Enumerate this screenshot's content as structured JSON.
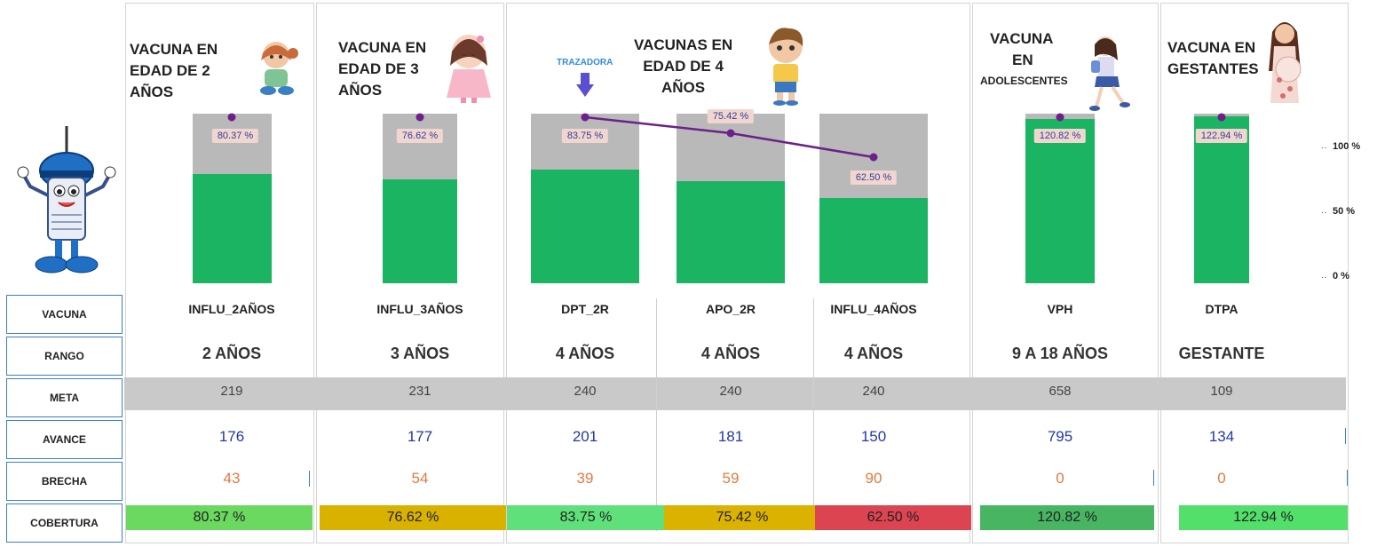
{
  "row_labels": {
    "vacuna": "VACUNA",
    "rango": "RANGO",
    "meta": "META",
    "avance": "AVANCE",
    "brecha": "BRECHA",
    "cobertura": "COBERTURA"
  },
  "panels": [
    {
      "title": "VACUNA EN\nEDAD DE 2\nAÑOS"
    },
    {
      "title": "VACUNA EN\nEDAD DE 3\nAÑOS"
    },
    {
      "title": "VACUNAS EN\nEDAD DE 4\nAÑOS",
      "annotation": "TRAZADORA"
    },
    {
      "title_line1": "VACUNA",
      "title_line2": "EN",
      "title_line3": "ADOLESCENTES"
    },
    {
      "title": "VACUNA EN\nGESTANTES"
    }
  ],
  "vaccines": [
    {
      "name": "INFLU_2AÑOS",
      "rango": "2 AÑOS",
      "meta": "219",
      "avance": "176",
      "brecha": "43",
      "cobertura": "80.37 %",
      "bar_label": "80.37 %",
      "pct": 80.37,
      "cob_color": "#6bd85f"
    },
    {
      "name": "INFLU_3AÑOS",
      "rango": "3 AÑOS",
      "meta": "231",
      "avance": "177",
      "brecha": "54",
      "cobertura": "76.62 %",
      "bar_label": "76.62 %",
      "pct": 76.62,
      "cob_color": "#d9b200"
    },
    {
      "name": "DPT_2R",
      "rango": "4 AÑOS",
      "meta": "240",
      "avance": "201",
      "brecha": "39",
      "cobertura": "83.75 %",
      "bar_label": "83.75 %",
      "pct": 83.75,
      "cob_color": "#5fe07a"
    },
    {
      "name": "APO_2R",
      "rango": "4 AÑOS",
      "meta": "240",
      "avance": "181",
      "brecha": "59",
      "cobertura": "75.42 %",
      "bar_label": "75.42 %",
      "pct": 75.42,
      "cob_color": "#dcb200"
    },
    {
      "name": "INFLU_4AÑOS",
      "rango": "4 AÑOS",
      "meta": "240",
      "avance": "150",
      "brecha": "90",
      "cobertura": "62.50 %",
      "bar_label": "62.50 %",
      "pct": 62.5,
      "cob_color": "#db4450"
    },
    {
      "name": "VPH",
      "rango": "9 A 18 AÑOS",
      "meta": "658",
      "avance": "795",
      "brecha": "0",
      "cobertura": "120.82 %",
      "bar_label": "120.82 %",
      "pct": 120.82,
      "cob_color": "#47b562"
    },
    {
      "name": "DTPA",
      "rango": "GESTANTE",
      "meta": "109",
      "avance": "134",
      "brecha": "0",
      "cobertura": "122.94 %",
      "bar_label": "122.94 %",
      "pct": 122.94,
      "cob_color": "#52e06a"
    }
  ],
  "y_axis": {
    "ticks": [
      "100 %",
      "50 %",
      "0 %"
    ]
  },
  "colors": {
    "bar_fill": "#1bb462",
    "bar_background": "#b9b9b9",
    "marker": "#6e1f8a",
    "label_bg": "#f1d6cf",
    "avance_text": "#2437a8",
    "brecha_text": "#e07a3f",
    "meta_band": "#c9c9c9",
    "row_label_border": "#3a7fc8"
  },
  "chart_data": {
    "type": "bar",
    "categories": [
      "INFLU_2AÑOS",
      "INFLU_3AÑOS",
      "DPT_2R",
      "APO_2R",
      "INFLU_4AÑOS",
      "VPH",
      "DTPA"
    ],
    "series": [
      {
        "values": [
          80.37,
          76.62,
          83.75,
          75.42,
          62.5,
          120.82,
          122.94
        ]
      }
    ],
    "ylim": [
      0,
      100
    ],
    "yticks": [
      "0 %",
      "50 %",
      "100 %"
    ]
  }
}
